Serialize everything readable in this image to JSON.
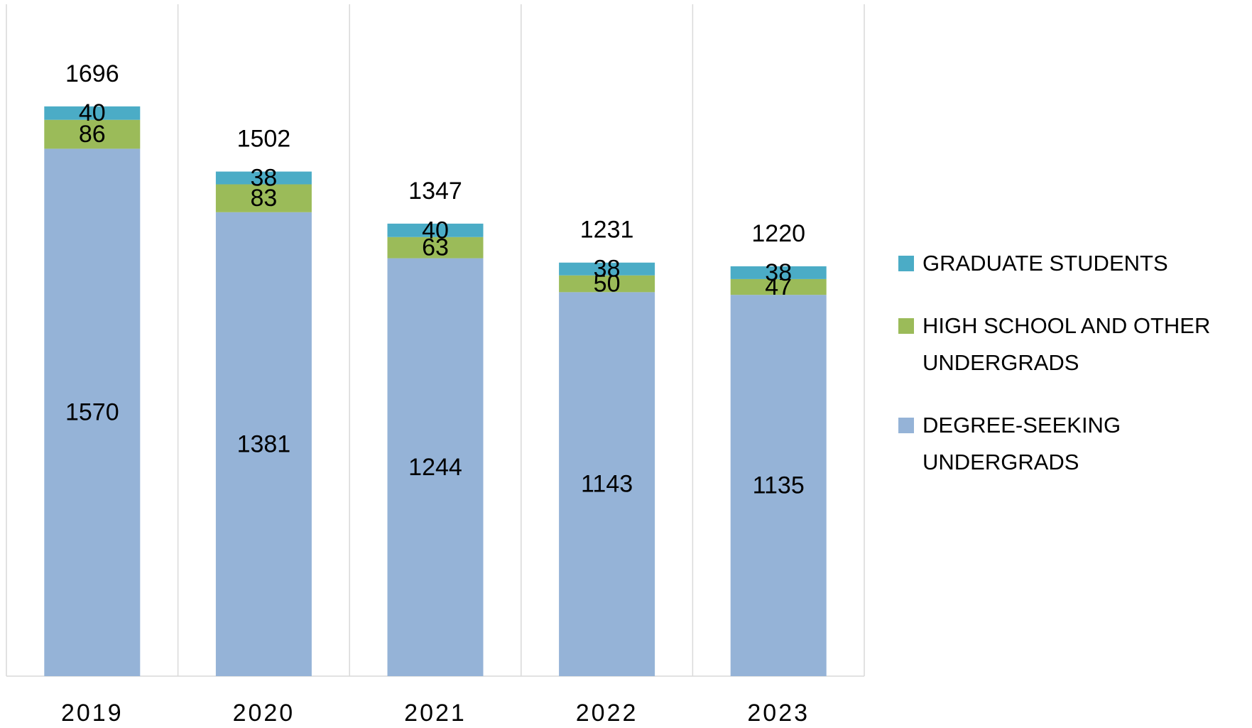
{
  "chart_data": {
    "type": "stacked_bar",
    "categories": [
      "2019",
      "2020",
      "2021",
      "2022",
      "2023"
    ],
    "series": [
      {
        "name": "DEGREE-SEEKING UNDERGRADS",
        "color": "#95b3d7",
        "values": [
          1570,
          1381,
          1244,
          1143,
          1135
        ]
      },
      {
        "name": "HIGH SCHOOL AND OTHER UNDERGRADS",
        "color": "#9bbb59",
        "values": [
          86,
          83,
          63,
          50,
          47
        ]
      },
      {
        "name": "GRADUATE STUDENTS",
        "color": "#4bacc6",
        "values": [
          40,
          38,
          40,
          38,
          38
        ]
      }
    ],
    "totals": [
      1696,
      1502,
      1347,
      1231,
      1220
    ],
    "ylim": [
      0,
      2000
    ],
    "legend": "right"
  }
}
